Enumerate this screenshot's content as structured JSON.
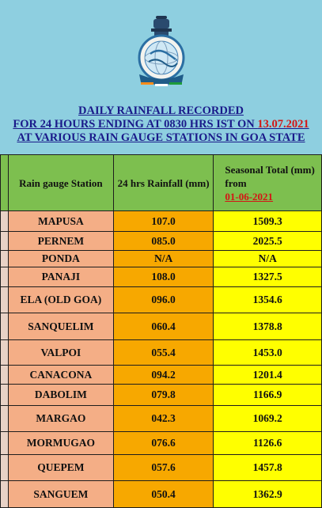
{
  "header": {
    "line1": "DAILY RAINFALL RECORDED",
    "line2_prefix": "FOR 24 HOURS ENDING AT 0830 HRS IST ON ",
    "line2_date": "13.07.2021",
    "line3": "AT VARIOUS RAIN GAUGE STATIONS IN GOA STATE"
  },
  "table": {
    "col_station": "Rain gauge Station",
    "col_rainfall": "24 hrs Rainfall (mm)",
    "col_seasonal": "Seasonal Total (mm) from",
    "col_seasonal_date": "01-06-2021",
    "rows": [
      {
        "station": "MAPUSA",
        "rainfall": "107.0",
        "seasonal": "1509.3"
      },
      {
        "station": "PERNEM",
        "rainfall": "085.0",
        "seasonal": "2025.5"
      },
      {
        "station": "PONDA",
        "rainfall": "N/A",
        "seasonal": "N/A"
      },
      {
        "station": "PANAJI",
        "rainfall": "108.0",
        "seasonal": "1327.5"
      },
      {
        "station": "ELA (OLD GOA)",
        "rainfall": "096.0",
        "seasonal": "1354.6"
      },
      {
        "station": "SANQUELIM",
        "rainfall": "060.4",
        "seasonal": "1378.8"
      },
      {
        "station": "VALPOI",
        "rainfall": "055.4",
        "seasonal": "1453.0"
      },
      {
        "station": "CANACONA",
        "rainfall": "094.2",
        "seasonal": "1201.4"
      },
      {
        "station": "DABOLIM",
        "rainfall": "079.8",
        "seasonal": "1166.9"
      },
      {
        "station": "MARGAO",
        "rainfall": "042.3",
        "seasonal": "1069.2"
      },
      {
        "station": "MORMUGAO",
        "rainfall": "076.6",
        "seasonal": "1126.6"
      },
      {
        "station": "QUEPEM",
        "rainfall": "057.6",
        "seasonal": "1457.8"
      },
      {
        "station": "SANGUEM",
        "rainfall": "050.4",
        "seasonal": "1362.9"
      }
    ]
  }
}
